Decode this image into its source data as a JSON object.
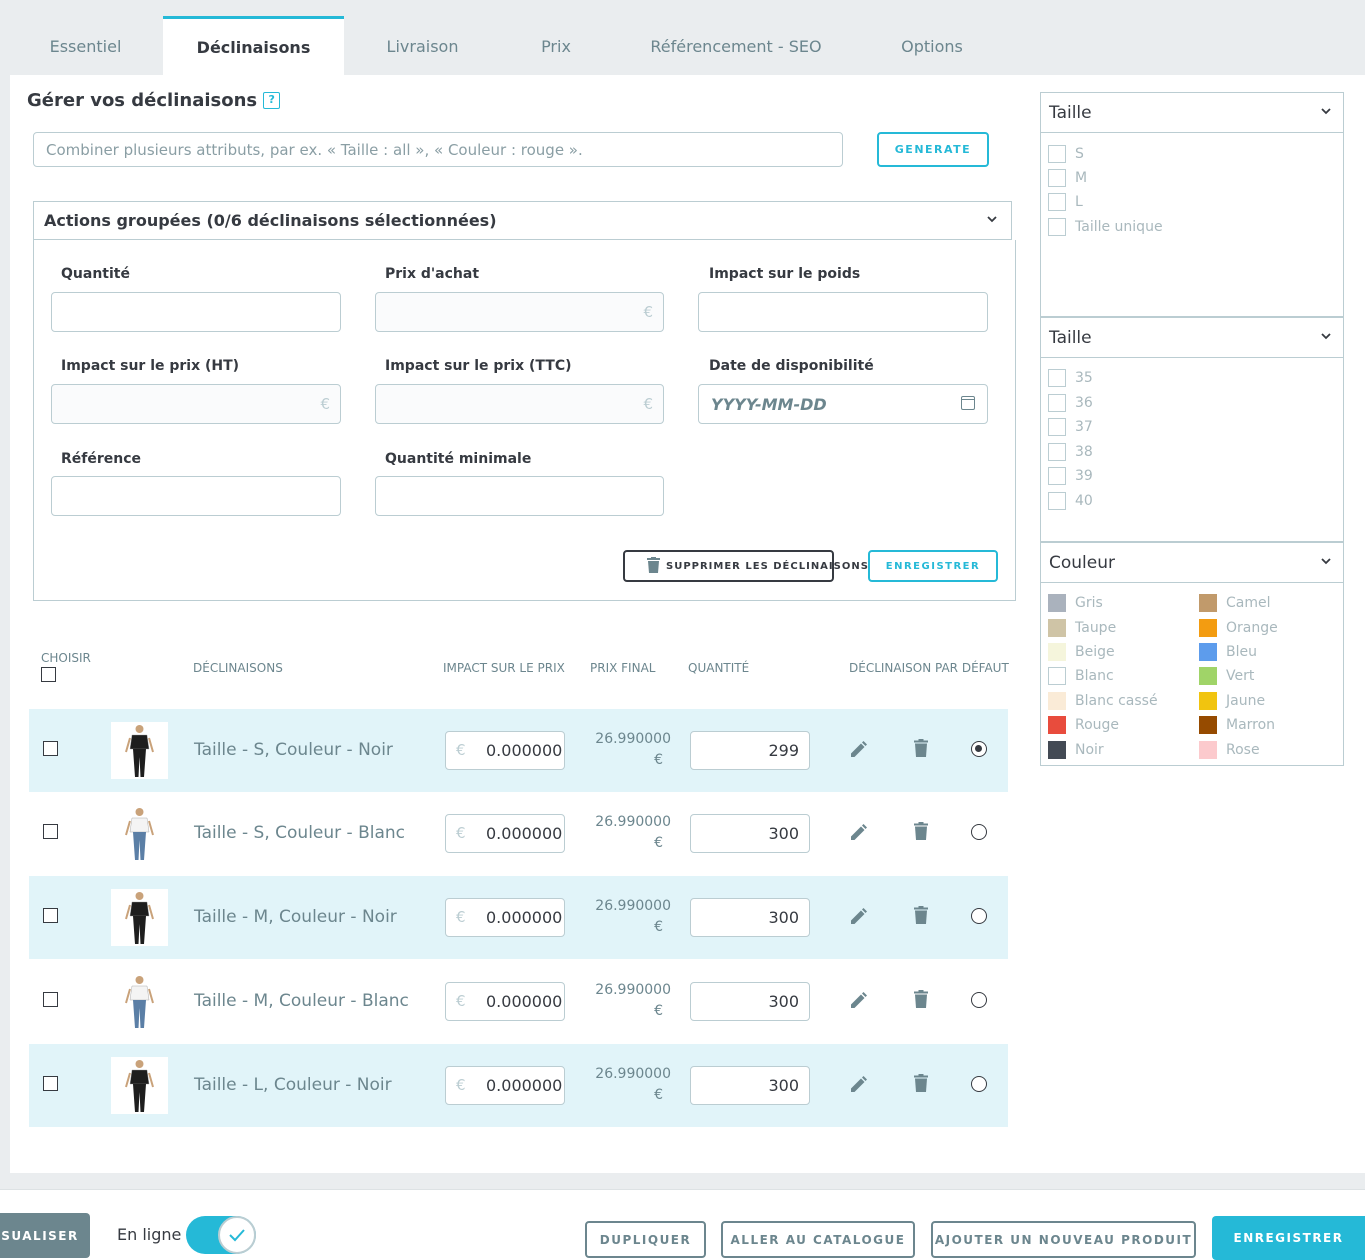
{
  "tabs": [
    {
      "label": "Essentiel"
    },
    {
      "label": "Déclinaisons"
    },
    {
      "label": "Livraison"
    },
    {
      "label": "Prix"
    },
    {
      "label": "Référencement - SEO"
    },
    {
      "label": "Options"
    }
  ],
  "active_tab": "Déclinaisons",
  "manage": {
    "title": "Gérer vos déclinaisons",
    "help": "?",
    "combine_placeholder": "Combiner plusieurs attributs, par ex. « Taille : all », « Couleur : rouge ».",
    "generate_label": "GENERATE"
  },
  "bulk": {
    "header": "Actions groupées (0/6 déclinaisons sélectionnées)",
    "fields": {
      "quantity": "Quantité",
      "purchase_price": "Prix d'achat",
      "weight_impact": "Impact sur le poids",
      "price_impact_ht": "Impact sur le prix (HT)",
      "price_impact_ttc": "Impact sur le prix (TTC)",
      "availability_date": "Date de disponibilité",
      "reference": "Référence",
      "min_quantity": "Quantité minimale"
    },
    "currency": "€",
    "date_placeholder": "YYYY-MM-DD",
    "delete_label": "SUPPRIMER LES DÉCLINAISONS",
    "save_label": "ENREGISTRER"
  },
  "table": {
    "headers": {
      "choose": "CHOISIR",
      "combinations": "DÉCLINAISONS",
      "price_impact": "IMPACT SUR LE PRIX",
      "final_price": "PRIX FINAL",
      "quantity": "QUANTITÉ",
      "default": "DÉCLINAISON PAR DÉFAUT"
    },
    "currency": "€",
    "rows": [
      {
        "name": "Taille - S, Couleur - Noir",
        "impact": "0.000000",
        "final": "26.990000",
        "qty": "299",
        "default": true,
        "color": "black"
      },
      {
        "name": "Taille - S, Couleur - Blanc",
        "impact": "0.000000",
        "final": "26.990000",
        "qty": "300",
        "default": false,
        "color": "white"
      },
      {
        "name": "Taille - M, Couleur - Noir",
        "impact": "0.000000",
        "final": "26.990000",
        "qty": "300",
        "default": false,
        "color": "black"
      },
      {
        "name": "Taille - M, Couleur - Blanc",
        "impact": "0.000000",
        "final": "26.990000",
        "qty": "300",
        "default": false,
        "color": "white"
      },
      {
        "name": "Taille - L, Couleur - Noir",
        "impact": "0.000000",
        "final": "26.990000",
        "qty": "300",
        "default": false,
        "color": "black"
      }
    ]
  },
  "filters": {
    "size1": {
      "title": "Taille",
      "items": [
        "S",
        "M",
        "L",
        "Taille unique"
      ]
    },
    "size2": {
      "title": "Taille",
      "items": [
        "35",
        "36",
        "37",
        "38",
        "39",
        "40"
      ]
    },
    "color": {
      "title": "Couleur",
      "left": [
        {
          "label": "Gris",
          "hex": "#AAB2BD"
        },
        {
          "label": "Taupe",
          "hex": "#CFC4A6"
        },
        {
          "label": "Beige",
          "hex": "#F5F5DC"
        },
        {
          "label": "Blanc",
          "hex": "#FFFFFF"
        },
        {
          "label": "Blanc cassé",
          "hex": "#FAEBD7"
        },
        {
          "label": "Rouge",
          "hex": "#E84C3D"
        },
        {
          "label": "Noir",
          "hex": "#434A54"
        }
      ],
      "right": [
        {
          "label": "Camel",
          "hex": "#C19A6B"
        },
        {
          "label": "Orange",
          "hex": "#F39C11"
        },
        {
          "label": "Bleu",
          "hex": "#5D9CEC"
        },
        {
          "label": "Vert",
          "hex": "#A0D468"
        },
        {
          "label": "Jaune",
          "hex": "#F1C40F"
        },
        {
          "label": "Marron",
          "hex": "#964B00"
        },
        {
          "label": "Rose",
          "hex": "#FCCACD"
        }
      ]
    }
  },
  "footer": {
    "preview_label": "SUALISER",
    "online_label": "En ligne",
    "duplicate_label": "DUPLIQUER",
    "catalog_label": "ALLER AU CATALOGUE",
    "new_product_label": "AJOUTER UN NOUVEAU PRODUIT",
    "save_label": "ENREGISTRER"
  },
  "colors": {
    "accent": "#25b9d7",
    "row_highlight": "#e1f4f9",
    "muted": "#6c868e"
  }
}
